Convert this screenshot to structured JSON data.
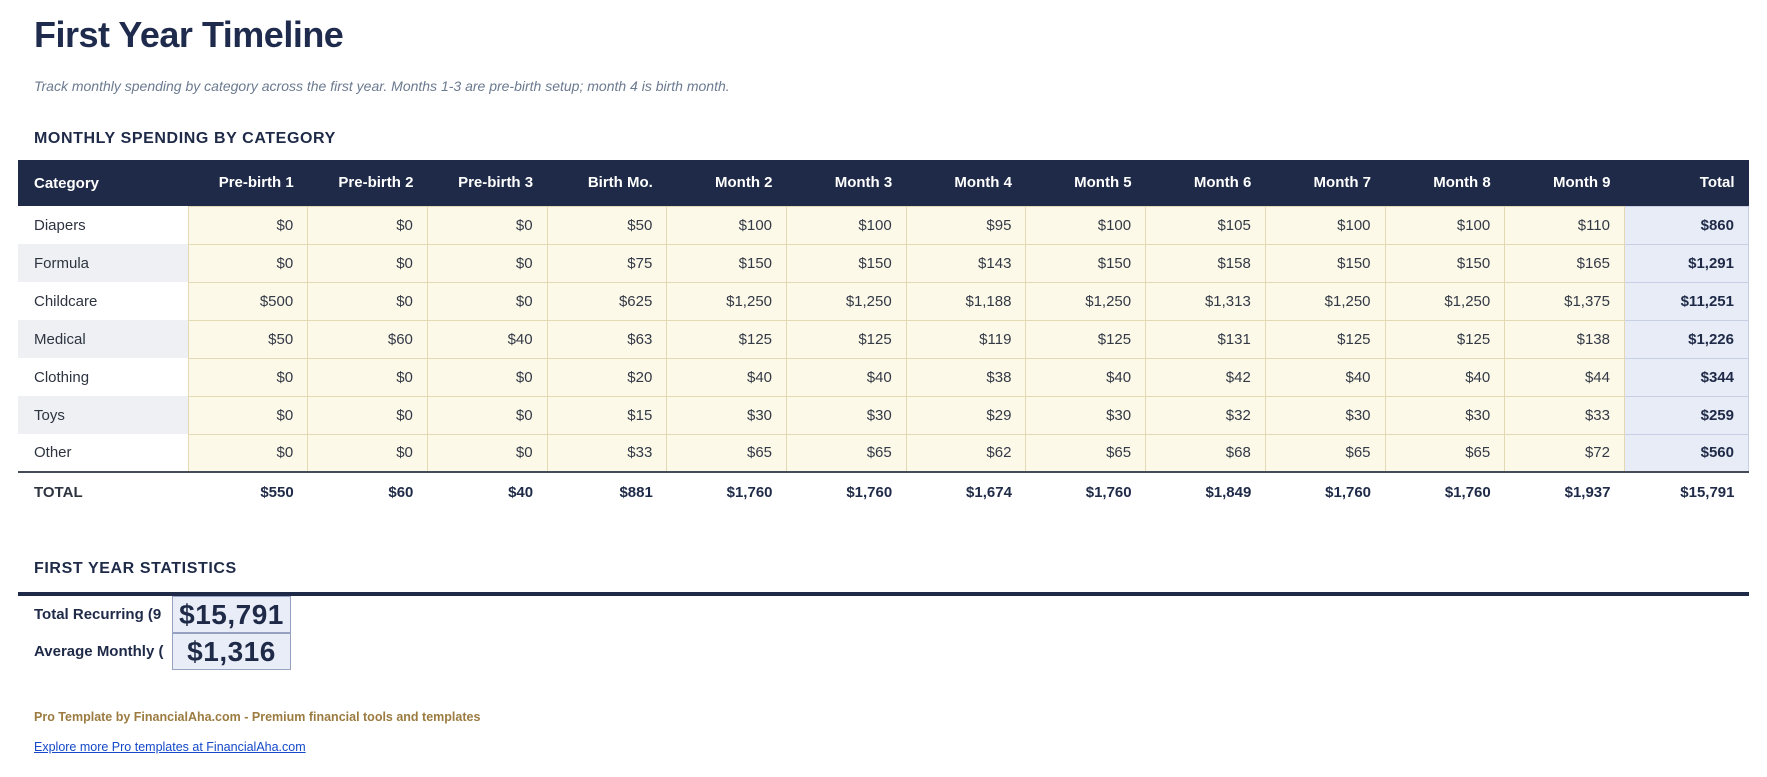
{
  "page": {
    "title": "First Year Timeline",
    "subtitle": "Track monthly spending by category across the first year. Months 1-3 are pre-birth setup; month 4 is birth month."
  },
  "table_section": {
    "heading": "MONTHLY SPENDING BY CATEGORY",
    "columns": [
      "Category",
      "Pre-birth 1",
      "Pre-birth 2",
      "Pre-birth 3",
      "Birth Mo.",
      "Month 2",
      "Month 3",
      "Month 4",
      "Month 5",
      "Month 6",
      "Month 7",
      "Month 8",
      "Month 9",
      "Total"
    ],
    "rows": [
      {
        "category": "Diapers",
        "values": [
          "$0",
          "$0",
          "$0",
          "$50",
          "$100",
          "$100",
          "$95",
          "$100",
          "$105",
          "$100",
          "$100",
          "$110"
        ],
        "total": "$860"
      },
      {
        "category": "Formula",
        "values": [
          "$0",
          "$0",
          "$0",
          "$75",
          "$150",
          "$150",
          "$143",
          "$150",
          "$158",
          "$150",
          "$150",
          "$165"
        ],
        "total": "$1,291"
      },
      {
        "category": "Childcare",
        "values": [
          "$500",
          "$0",
          "$0",
          "$625",
          "$1,250",
          "$1,250",
          "$1,188",
          "$1,250",
          "$1,313",
          "$1,250",
          "$1,250",
          "$1,375"
        ],
        "total": "$11,251"
      },
      {
        "category": "Medical",
        "values": [
          "$50",
          "$60",
          "$40",
          "$63",
          "$125",
          "$125",
          "$119",
          "$125",
          "$131",
          "$125",
          "$125",
          "$138"
        ],
        "total": "$1,226"
      },
      {
        "category": "Clothing",
        "values": [
          "$0",
          "$0",
          "$0",
          "$20",
          "$40",
          "$40",
          "$38",
          "$40",
          "$42",
          "$40",
          "$40",
          "$44"
        ],
        "total": "$344"
      },
      {
        "category": "Toys",
        "values": [
          "$0",
          "$0",
          "$0",
          "$15",
          "$30",
          "$30",
          "$29",
          "$30",
          "$32",
          "$30",
          "$30",
          "$33"
        ],
        "total": "$259"
      },
      {
        "category": "Other",
        "values": [
          "$0",
          "$0",
          "$0",
          "$33",
          "$65",
          "$65",
          "$62",
          "$65",
          "$68",
          "$65",
          "$65",
          "$72"
        ],
        "total": "$560"
      }
    ],
    "total_row": {
      "label": "TOTAL",
      "values": [
        "$550",
        "$60",
        "$40",
        "$881",
        "$1,760",
        "$1,760",
        "$1,674",
        "$1,760",
        "$1,849",
        "$1,760",
        "$1,760",
        "$1,937"
      ],
      "total": "$15,791"
    }
  },
  "stats_section": {
    "heading": "FIRST YEAR STATISTICS",
    "stats": [
      {
        "label": "Total Recurring (9",
        "value": "$15,791"
      },
      {
        "label": "Average Monthly (",
        "value": "$1,316"
      }
    ]
  },
  "footer": {
    "branding": "Pro Template by FinancialAha.com - Premium financial tools and templates",
    "link": "Explore more Pro templates at FinancialAha.com"
  },
  "colors": {
    "header_bg": "#1e2a47",
    "accent_navy": "#1f2b4d",
    "input_cell_bg": "#fdf9e9",
    "input_cell_border": "#e3d9b4",
    "total_col_bg": "#e8ecf6",
    "row_alt_bg": "#eef0f4",
    "stat_box_bg": "#e9edf7",
    "footer_brand": "#9b7b40",
    "link_blue": "#1549c9"
  }
}
